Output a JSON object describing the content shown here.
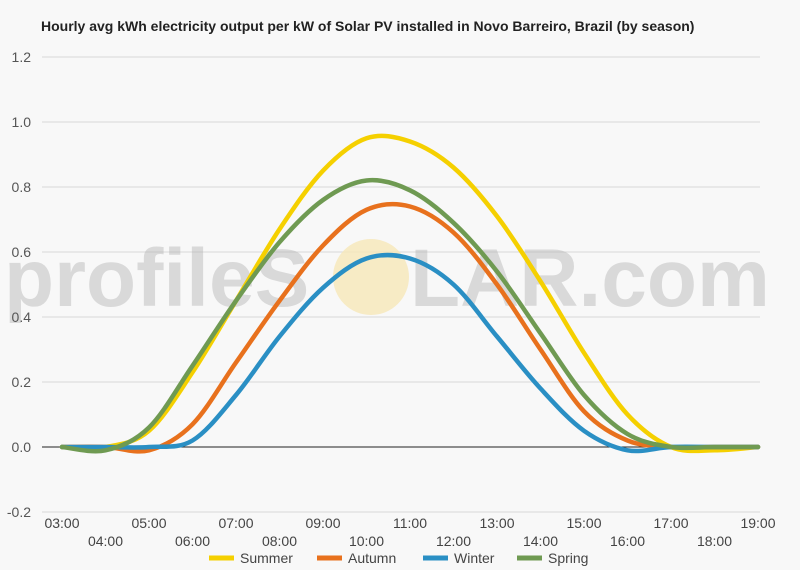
{
  "chart_data": {
    "type": "line",
    "title": "Hourly avg kWh electricity output per kW of Solar PV installed in Novo Barreiro, Brazil (by season)",
    "xlabel": "",
    "ylabel": "",
    "ylim": [
      -0.2,
      1.2
    ],
    "yticks": [
      "-0.2",
      "0.0",
      "0.2",
      "0.4",
      "0.6",
      "0.8",
      "1.0",
      "1.2"
    ],
    "xticks_upper": [
      "03:00",
      "05:00",
      "07:00",
      "09:00",
      "11:00",
      "13:00",
      "15:00",
      "17:00",
      "19:00"
    ],
    "xticks_lower": [
      "04:00",
      "06:00",
      "08:00",
      "10:00",
      "12:00",
      "14:00",
      "16:00",
      "18:00"
    ],
    "x": [
      "03:00",
      "04:00",
      "05:00",
      "06:00",
      "07:00",
      "08:00",
      "09:00",
      "10:00",
      "11:00",
      "12:00",
      "13:00",
      "14:00",
      "15:00",
      "16:00",
      "17:00",
      "18:00",
      "19:00"
    ],
    "grid": true,
    "legend_position": "bottom",
    "series": [
      {
        "name": "Summer",
        "color": "#f5d000",
        "values": [
          0.0,
          0.0,
          0.05,
          0.23,
          0.45,
          0.67,
          0.85,
          0.95,
          0.94,
          0.86,
          0.71,
          0.51,
          0.29,
          0.1,
          0.0,
          -0.01,
          0.0
        ]
      },
      {
        "name": "Autumn",
        "color": "#e8711d",
        "values": [
          0.0,
          0.0,
          -0.01,
          0.07,
          0.26,
          0.45,
          0.62,
          0.73,
          0.74,
          0.66,
          0.5,
          0.3,
          0.11,
          0.02,
          0.0,
          0.0,
          0.0
        ]
      },
      {
        "name": "Winter",
        "color": "#2a8fc4",
        "values": [
          0.0,
          0.0,
          0.0,
          0.02,
          0.16,
          0.34,
          0.49,
          0.58,
          0.58,
          0.5,
          0.34,
          0.18,
          0.05,
          -0.01,
          0.0,
          0.0,
          0.0
        ]
      },
      {
        "name": "Spring",
        "color": "#6f9a52",
        "values": [
          0.0,
          -0.01,
          0.06,
          0.25,
          0.45,
          0.63,
          0.76,
          0.82,
          0.79,
          0.69,
          0.54,
          0.35,
          0.16,
          0.04,
          0.0,
          0.0,
          0.0
        ]
      }
    ]
  },
  "watermark": {
    "text_left": "profileS",
    "text_right": "LAR.com"
  }
}
